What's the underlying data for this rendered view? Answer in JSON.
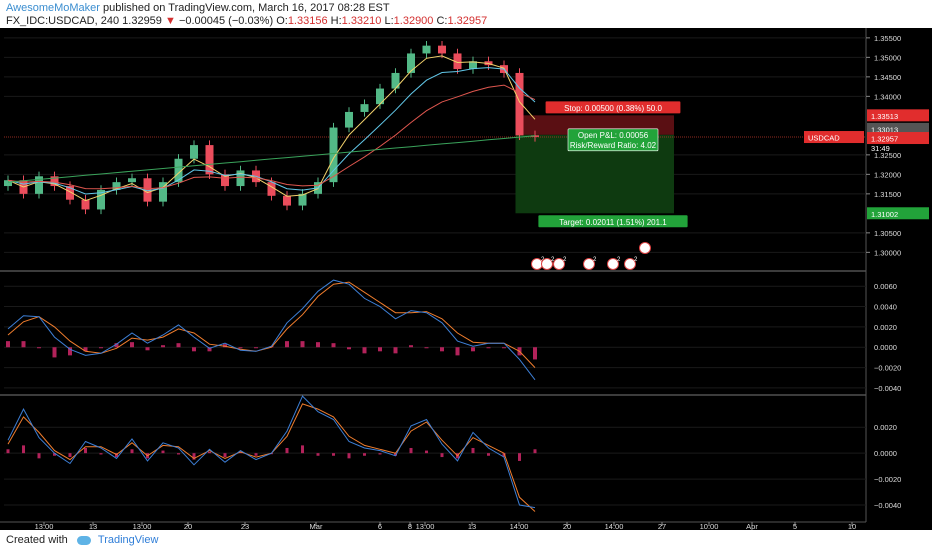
{
  "header": {
    "author": "AwesomeMoMaker",
    "published_text": "published on TradingView.com, March 16, 2017 08:28 EST",
    "symbol": "FX_IDC:USDCAD, 240",
    "last": "1.32959",
    "change_arrow": "▼",
    "change": "−0.00045 (−0.03%)",
    "open_label": "O:",
    "open": "1.33156",
    "high_label": "H:",
    "high": "1.33210",
    "low_label": "L:",
    "low": "1.32900",
    "close_label": "C:",
    "close": "1.32957"
  },
  "footer": {
    "created_with": "Created with",
    "brand": "TradingView"
  },
  "colors": {
    "background": "#000000",
    "up_candle": "#53b987",
    "down_candle": "#eb4d5c",
    "stop_zone": "#5a0f13",
    "target_zone": "#0e3a10",
    "ema_fast": "#f2d16b",
    "ema_mid": "#62c8e9",
    "ema_slow": "#e0574f",
    "sma_long": "#3aa35b",
    "macd_line": "#3d7fd6",
    "signal_line": "#f07d2d",
    "histogram": "#b2225a"
  },
  "chart_data": [
    {
      "type": "candlestick",
      "ylim": [
        1.2965,
        1.3565
      ],
      "price_ticks": [
        "1.35500",
        "1.35000",
        "1.34500",
        "1.34000",
        "1.32500",
        "1.32000",
        "1.31500",
        "1.30500",
        "1.30000"
      ],
      "x_ticks": [
        "13:00",
        "13",
        "13:00",
        "20",
        "23",
        "Mar",
        "6",
        "8",
        "13:00",
        "13",
        "14:00",
        "20",
        "14:00",
        "27",
        "10:00",
        "Apr",
        "5",
        "10"
      ],
      "price_closes": [
        1.3185,
        1.315,
        1.3195,
        1.317,
        1.3135,
        1.311,
        1.316,
        1.318,
        1.319,
        1.313,
        1.318,
        1.324,
        1.3275,
        1.32,
        1.317,
        1.321,
        1.318,
        1.3145,
        1.312,
        1.315,
        1.318,
        1.332,
        1.336,
        1.338,
        1.342,
        1.346,
        1.351,
        1.353,
        1.351,
        1.347,
        1.349,
        1.348,
        1.346,
        1.33,
        1.3296
      ],
      "current_price": 1.32957,
      "current_price_label": "USDCAD",
      "current_price_text": "1.32957",
      "countdown": "31:49",
      "entry_text": "1.33013",
      "stop_price": 1.33513,
      "stop_price_text": "1.33513",
      "target_price": 1.31002,
      "target_price_text": "1.31002",
      "position": {
        "stop_label": "Stop: 0.00500 (0.38%) 50.0",
        "open_pl": "Open P&L: 0.00056",
        "risk_reward": "Risk/Reward Ratio: 4.02",
        "target_label": "Target: 0.02011 (1.51%) 201.1"
      },
      "event_badges": [
        "2",
        "2",
        "2",
        "2",
        "2",
        "2"
      ]
    },
    {
      "type": "line",
      "name": "MACD",
      "ylim": [
        -0.0044,
        0.0072
      ],
      "y_ticks": [
        "0.0060",
        "0.0040",
        "0.0020",
        "0.0000",
        "−0.0020",
        "−0.0040"
      ],
      "macd": [
        0.0018,
        0.0031,
        0.003,
        0.001,
        -0.0002,
        -0.0008,
        -0.0006,
        0.0003,
        0.0014,
        0.0004,
        0.0012,
        0.0022,
        0.001,
        -0.0001,
        0.0004,
        -0.0003,
        -0.0004,
        0.0001,
        0.0024,
        0.0038,
        0.0055,
        0.0066,
        0.0062,
        0.0048,
        0.004,
        0.0028,
        0.0036,
        0.0034,
        0.0024,
        0.0006,
        0.0001,
        0.0004,
        0.0004,
        -0.0012,
        -0.0032
      ],
      "signal": [
        0.0012,
        0.0025,
        0.003,
        0.002,
        0.0006,
        -0.0004,
        -0.0006,
        -0.0001,
        0.0009,
        0.0007,
        0.001,
        0.0018,
        0.0014,
        0.0003,
        0.0001,
        -0.0002,
        -0.0004,
        0.0,
        0.0018,
        0.0032,
        0.005,
        0.0062,
        0.0064,
        0.0054,
        0.0044,
        0.0034,
        0.0034,
        0.0035,
        0.0028,
        0.0014,
        0.0005,
        0.0004,
        0.0004,
        -0.0004,
        -0.002
      ]
    },
    {
      "type": "line",
      "name": "Oscillator",
      "ylim": [
        -0.005,
        0.0041
      ],
      "y_ticks": [
        "0.0020",
        "0.0000",
        "−0.0020",
        "−0.0040"
      ],
      "fast": [
        0.001,
        0.0034,
        0.0012,
        0.0,
        -0.0008,
        0.0009,
        0.0004,
        -0.0004,
        0.0011,
        -0.0006,
        0.0008,
        0.0004,
        -0.0009,
        0.0003,
        -0.0007,
        0.0002,
        -0.0005,
        0.0,
        0.0017,
        0.0044,
        0.0032,
        0.0026,
        0.0009,
        0.0004,
        0.0002,
        -0.0002,
        0.0021,
        0.0026,
        0.0007,
        -0.0006,
        0.0016,
        0.0004,
        -0.0003,
        -0.004,
        -0.0042
      ],
      "slow": [
        0.0007,
        0.0028,
        0.0016,
        0.0002,
        -0.0005,
        0.0005,
        0.0005,
        -0.0001,
        0.0008,
        -0.0002,
        0.0006,
        0.0005,
        -0.0004,
        0.0002,
        -0.0004,
        0.0001,
        -0.0003,
        0.0,
        0.0013,
        0.0038,
        0.0034,
        0.0028,
        0.0013,
        0.0006,
        0.0003,
        0.0,
        0.0017,
        0.0024,
        0.001,
        -0.0002,
        0.0012,
        0.0006,
        0.0,
        -0.0034,
        -0.0045
      ]
    }
  ]
}
